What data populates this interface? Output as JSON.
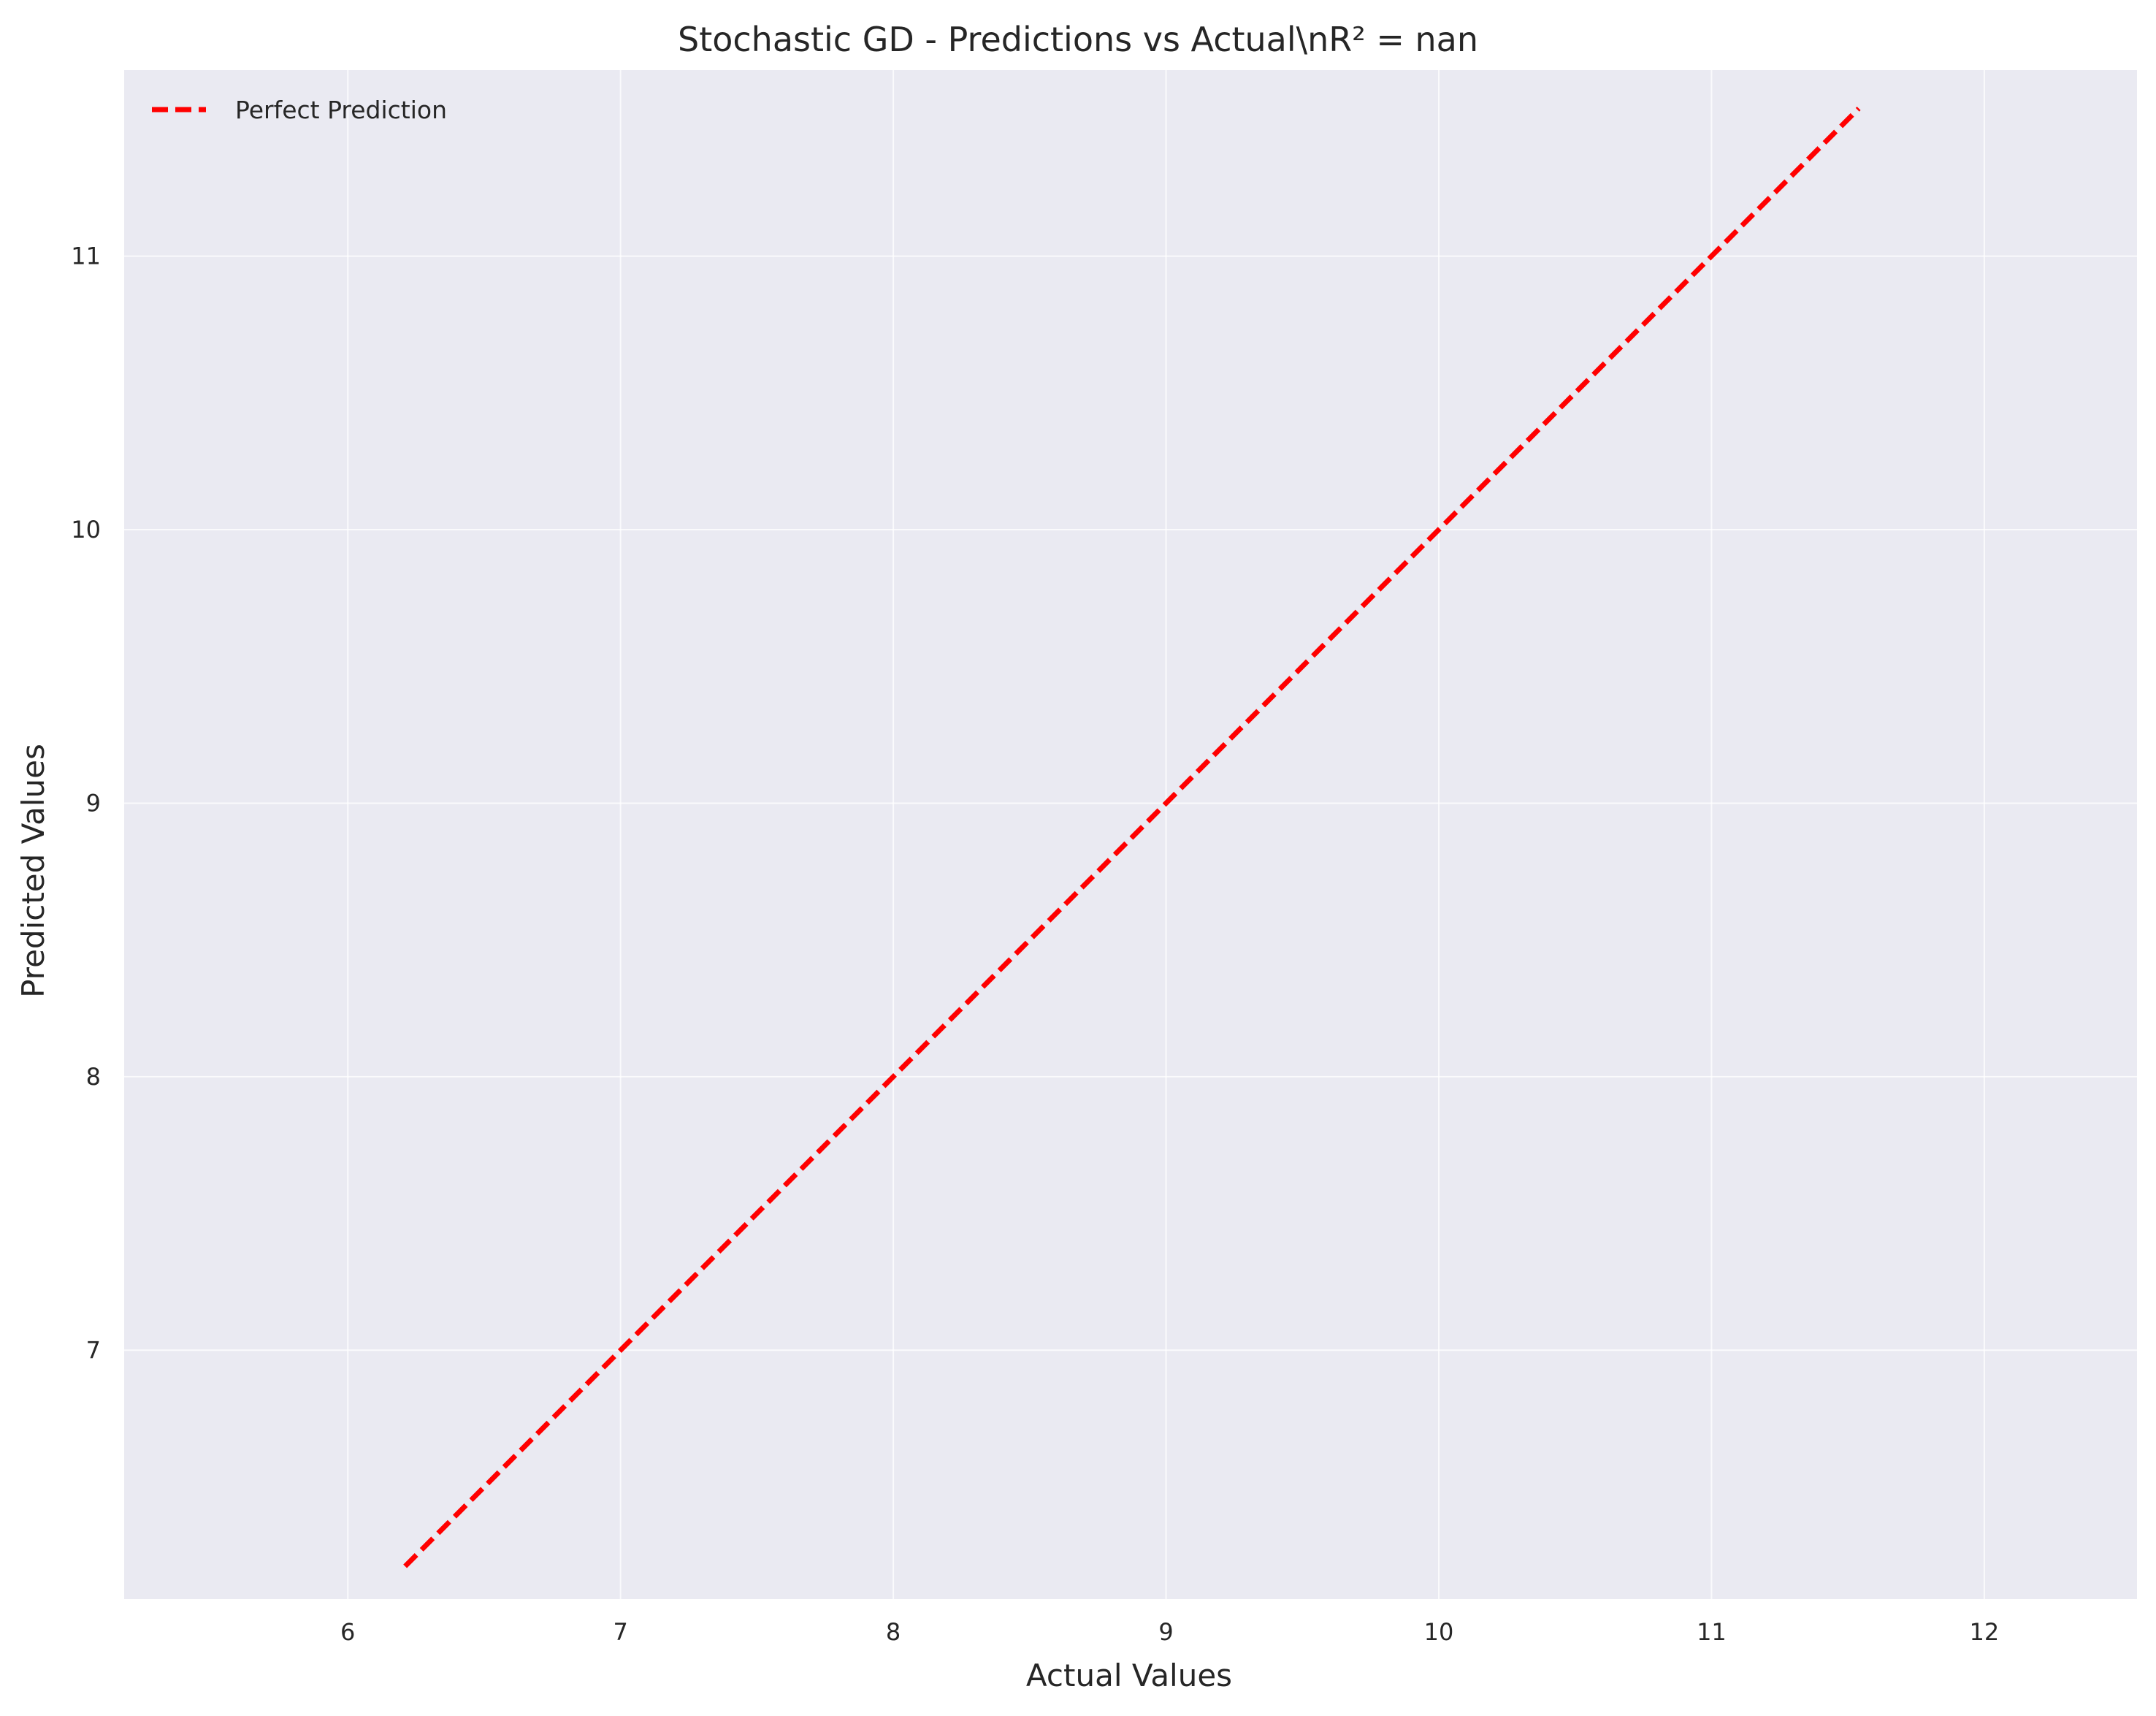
{
  "chart_data": {
    "type": "line",
    "title": "Stochastic GD - Predictions vs Actual\\nR² = nan",
    "xlabel": "Actual Values",
    "ylabel": "Predicted Values",
    "xlim": [
      5.18,
      12.56
    ],
    "ylim": [
      6.09,
      11.68
    ],
    "xticks": [
      6,
      7,
      8,
      9,
      10,
      11,
      12
    ],
    "yticks": [
      7,
      8,
      9,
      10,
      11
    ],
    "grid": true,
    "legend_position": "upper-left",
    "series": [
      {
        "name": "Perfect Prediction",
        "style": "dashed",
        "color": "#ff0000",
        "x": [
          6.21,
          11.54
        ],
        "y": [
          6.21,
          11.54
        ]
      }
    ]
  },
  "colors": {
    "plot_background": "#eaeaf2",
    "grid": "#ffffff",
    "line": "#ff0000",
    "text": "#262626"
  }
}
